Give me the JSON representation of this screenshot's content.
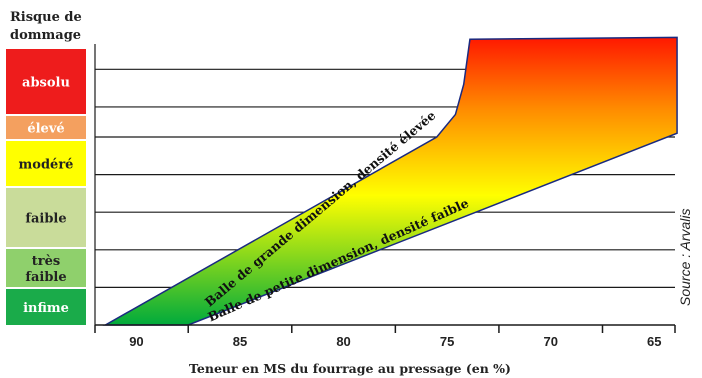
{
  "chart_data": {
    "type": "area",
    "title": "",
    "xlabel": "Teneur en MS du fourrage au pressage (en %)",
    "ylabel": "Risque de dommage",
    "x_ticks": [
      90,
      85,
      80,
      75,
      70,
      65
    ],
    "x_range_descending": [
      92,
      64
    ],
    "risk_levels": [
      {
        "name": "absolu",
        "color": "#ee1c1c"
      },
      {
        "name": "élevé",
        "color": "#f4a05f"
      },
      {
        "name": "modéré",
        "color": "#ffff00"
      },
      {
        "name": "faible",
        "color": "#c9dc9a"
      },
      {
        "name": "très\nfaible",
        "color": "#8fd06c"
      },
      {
        "name": "infime",
        "color": "#1aab4a"
      }
    ],
    "series": [
      {
        "name": "Balle de grande dimension, densité élevée",
        "x": [
          91.5,
          75.5,
          74.6,
          74.2,
          73.9
        ],
        "y": [
          0,
          5.0,
          5.6,
          6.4,
          7.6
        ]
      },
      {
        "name": "Balle de petite dimension, densité faible",
        "x": [
          87.5,
          63.9
        ],
        "y": [
          0,
          5.1
        ]
      }
    ],
    "upper_boundary_y": [
      7.6,
      7.65
    ],
    "grid": true,
    "source": "Source : Arvalis"
  }
}
